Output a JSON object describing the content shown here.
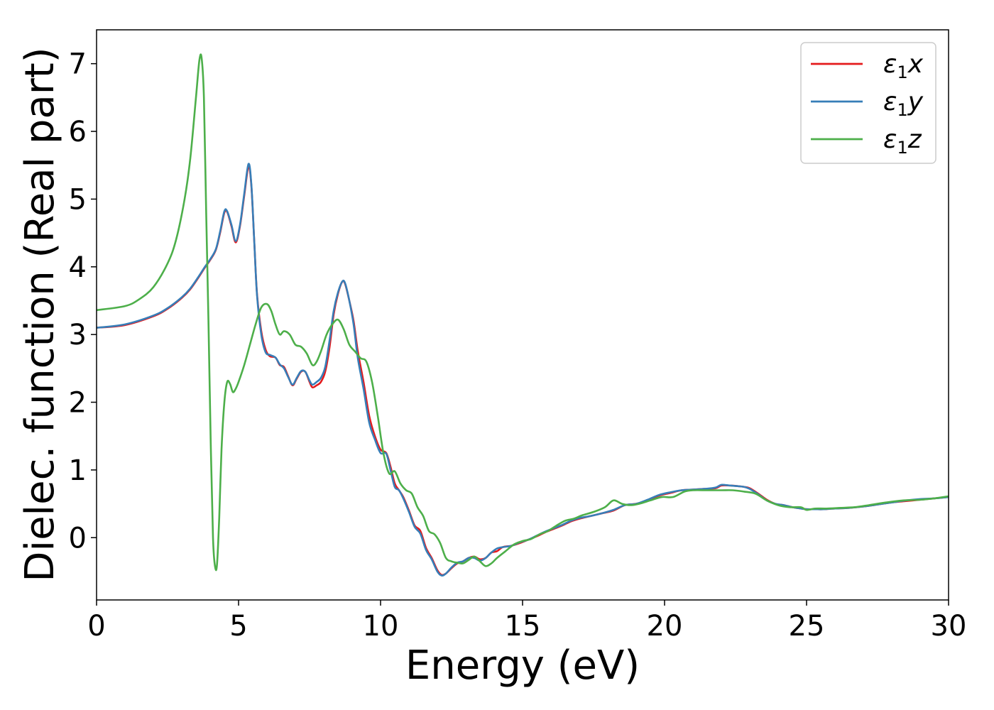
{
  "chart_data": {
    "type": "line",
    "title": "",
    "xlabel": "Energy (eV)",
    "ylabel": "Dielec. function (Real part)",
    "xlim": [
      0,
      30
    ],
    "ylim": [
      -0.92,
      7.5
    ],
    "xticks": [
      0,
      5,
      10,
      15,
      20,
      25,
      30
    ],
    "yticks": [
      0,
      1,
      2,
      3,
      4,
      5,
      6,
      7
    ],
    "grid": false,
    "legend_position": "top-right",
    "series": [
      {
        "name": "ε1x",
        "legend_main": "ε",
        "legend_sub": "1",
        "legend_suffix": "x",
        "color": "#e41a1c",
        "x": [
          0,
          1,
          2,
          2.5,
          3,
          3.3,
          3.6,
          3.8,
          4.0,
          4.2,
          4.35,
          4.5,
          4.6,
          4.75,
          4.9,
          5.05,
          5.2,
          5.35,
          5.45,
          5.55,
          5.65,
          5.8,
          5.95,
          6.1,
          6.3,
          6.45,
          6.6,
          6.75,
          6.9,
          7.05,
          7.2,
          7.35,
          7.5,
          7.6,
          7.75,
          7.9,
          8.05,
          8.2,
          8.35,
          8.5,
          8.65,
          8.75,
          8.9,
          9.05,
          9.2,
          9.4,
          9.6,
          9.8,
          10.0,
          10.2,
          10.35,
          10.5,
          10.65,
          10.8,
          11.0,
          11.2,
          11.4,
          11.6,
          11.8,
          12.0,
          12.15,
          12.3,
          12.5,
          12.7,
          12.9,
          13.1,
          13.3,
          13.5,
          13.7,
          13.9,
          14.1,
          14.3,
          14.6,
          14.9,
          15.2,
          15.5,
          15.8,
          16.1,
          16.4,
          16.7,
          17.0,
          17.4,
          17.8,
          18.2,
          18.6,
          19.0,
          19.4,
          19.8,
          20.2,
          20.6,
          21.0,
          21.4,
          21.8,
          22.0,
          22.3,
          22.6,
          22.8,
          23.0,
          23.3,
          23.6,
          23.9,
          24.2,
          24.5,
          24.8,
          25.0,
          25.3,
          25.6,
          26.0,
          26.5,
          27.0,
          27.5,
          28.0,
          28.5,
          29.0,
          29.5,
          30.0
        ],
        "y": [
          3.1,
          3.14,
          3.27,
          3.38,
          3.54,
          3.67,
          3.85,
          3.98,
          4.1,
          4.25,
          4.5,
          4.8,
          4.81,
          4.6,
          4.36,
          4.6,
          5.05,
          5.48,
          5.2,
          4.4,
          3.6,
          3.05,
          2.78,
          2.68,
          2.66,
          2.55,
          2.52,
          2.38,
          2.25,
          2.35,
          2.45,
          2.45,
          2.3,
          2.22,
          2.25,
          2.3,
          2.45,
          2.8,
          3.3,
          3.6,
          3.78,
          3.75,
          3.5,
          3.2,
          2.75,
          2.3,
          1.8,
          1.5,
          1.3,
          1.25,
          1.05,
          0.8,
          0.7,
          0.6,
          0.4,
          0.18,
          0.1,
          -0.15,
          -0.3,
          -0.48,
          -0.55,
          -0.53,
          -0.45,
          -0.38,
          -0.35,
          -0.3,
          -0.28,
          -0.32,
          -0.3,
          -0.22,
          -0.2,
          -0.14,
          -0.12,
          -0.08,
          -0.03,
          0.02,
          0.08,
          0.13,
          0.18,
          0.24,
          0.28,
          0.32,
          0.36,
          0.4,
          0.48,
          0.5,
          0.55,
          0.62,
          0.66,
          0.7,
          0.71,
          0.72,
          0.73,
          0.77,
          0.77,
          0.76,
          0.75,
          0.73,
          0.65,
          0.56,
          0.5,
          0.48,
          0.45,
          0.43,
          0.42,
          0.42,
          0.42,
          0.43,
          0.44,
          0.46,
          0.49,
          0.52,
          0.54,
          0.56,
          0.58,
          0.6
        ]
      },
      {
        "name": "ε1y",
        "legend_main": "ε",
        "legend_sub": "1",
        "legend_suffix": "y",
        "color": "#377eb8",
        "x": [
          0,
          1,
          2,
          2.5,
          3,
          3.3,
          3.6,
          3.8,
          4.0,
          4.2,
          4.35,
          4.5,
          4.6,
          4.75,
          4.9,
          5.05,
          5.2,
          5.35,
          5.45,
          5.55,
          5.65,
          5.8,
          5.95,
          6.1,
          6.3,
          6.45,
          6.6,
          6.75,
          6.9,
          7.05,
          7.2,
          7.35,
          7.5,
          7.6,
          7.75,
          7.9,
          8.05,
          8.2,
          8.35,
          8.5,
          8.65,
          8.75,
          8.9,
          9.05,
          9.2,
          9.4,
          9.6,
          9.8,
          10.0,
          10.2,
          10.35,
          10.5,
          10.65,
          10.8,
          11.0,
          11.2,
          11.4,
          11.6,
          11.8,
          12.0,
          12.15,
          12.3,
          12.5,
          12.7,
          12.9,
          13.1,
          13.3,
          13.5,
          13.7,
          13.9,
          14.1,
          14.3,
          14.6,
          14.9,
          15.2,
          15.5,
          15.8,
          16.1,
          16.4,
          16.7,
          17.0,
          17.4,
          17.8,
          18.2,
          18.6,
          19.0,
          19.4,
          19.8,
          20.2,
          20.6,
          21.0,
          21.4,
          21.8,
          22.0,
          22.3,
          22.6,
          22.8,
          23.0,
          23.3,
          23.6,
          23.9,
          24.2,
          24.5,
          24.8,
          25.0,
          25.3,
          25.6,
          26.0,
          26.5,
          27.0,
          27.5,
          28.0,
          28.5,
          29.0,
          29.5,
          30.0
        ],
        "y": [
          3.1,
          3.15,
          3.28,
          3.39,
          3.55,
          3.68,
          3.86,
          3.99,
          4.11,
          4.26,
          4.52,
          4.82,
          4.82,
          4.62,
          4.38,
          4.62,
          5.08,
          5.52,
          5.22,
          4.4,
          3.58,
          3.0,
          2.74,
          2.7,
          2.66,
          2.56,
          2.5,
          2.37,
          2.26,
          2.36,
          2.46,
          2.45,
          2.32,
          2.26,
          2.3,
          2.36,
          2.52,
          2.9,
          3.35,
          3.62,
          3.78,
          3.76,
          3.5,
          3.15,
          2.65,
          2.2,
          1.7,
          1.45,
          1.25,
          1.24,
          1.0,
          0.75,
          0.7,
          0.58,
          0.38,
          0.16,
          0.06,
          -0.18,
          -0.32,
          -0.5,
          -0.56,
          -0.53,
          -0.44,
          -0.37,
          -0.35,
          -0.3,
          -0.3,
          -0.34,
          -0.3,
          -0.22,
          -0.16,
          -0.14,
          -0.12,
          -0.07,
          -0.03,
          0.03,
          0.09,
          0.14,
          0.19,
          0.25,
          0.29,
          0.32,
          0.36,
          0.41,
          0.48,
          0.5,
          0.56,
          0.63,
          0.67,
          0.7,
          0.71,
          0.72,
          0.74,
          0.78,
          0.77,
          0.76,
          0.75,
          0.72,
          0.64,
          0.55,
          0.5,
          0.48,
          0.45,
          0.43,
          0.42,
          0.42,
          0.42,
          0.43,
          0.44,
          0.46,
          0.49,
          0.52,
          0.55,
          0.57,
          0.58,
          0.6
        ]
      },
      {
        "name": "ε1z",
        "legend_main": "ε",
        "legend_sub": "1",
        "legend_suffix": "z",
        "color": "#4daf4a",
        "x": [
          0,
          1,
          1.5,
          2,
          2.5,
          2.8,
          3.1,
          3.3,
          3.5,
          3.62,
          3.7,
          3.78,
          3.86,
          3.94,
          4.02,
          4.1,
          4.17,
          4.24,
          4.32,
          4.4,
          4.5,
          4.6,
          4.7,
          4.8,
          4.9,
          5.0,
          5.2,
          5.4,
          5.6,
          5.8,
          6.0,
          6.15,
          6.3,
          6.45,
          6.6,
          6.8,
          7.0,
          7.2,
          7.4,
          7.6,
          7.75,
          7.9,
          8.1,
          8.3,
          8.5,
          8.7,
          8.9,
          9.1,
          9.3,
          9.5,
          9.7,
          9.9,
          10.1,
          10.3,
          10.5,
          10.7,
          10.9,
          11.1,
          11.3,
          11.5,
          11.7,
          11.9,
          12.1,
          12.3,
          12.5,
          12.7,
          12.9,
          13.1,
          13.3,
          13.5,
          13.7,
          13.9,
          14.1,
          14.4,
          14.7,
          15.0,
          15.3,
          15.6,
          15.9,
          16.2,
          16.5,
          16.8,
          17.1,
          17.5,
          17.9,
          18.2,
          18.5,
          18.8,
          19.1,
          19.5,
          19.9,
          20.3,
          20.7,
          21.0,
          21.5,
          22.0,
          22.4,
          22.8,
          23.2,
          23.6,
          24.0,
          24.4,
          24.8,
          25.0,
          25.3,
          25.7,
          26.2,
          26.7,
          27.2,
          27.8,
          28.4,
          29.0,
          29.5,
          30.0
        ],
        "y": [
          3.36,
          3.42,
          3.52,
          3.7,
          4.05,
          4.4,
          5.0,
          5.6,
          6.5,
          7.05,
          7.08,
          6.5,
          4.8,
          3.2,
          1.4,
          0.0,
          -0.42,
          -0.4,
          0.3,
          1.3,
          2.0,
          2.3,
          2.27,
          2.15,
          2.2,
          2.3,
          2.55,
          2.85,
          3.15,
          3.4,
          3.45,
          3.35,
          3.15,
          3.0,
          3.05,
          3.0,
          2.85,
          2.82,
          2.72,
          2.55,
          2.6,
          2.75,
          3.0,
          3.15,
          3.22,
          3.08,
          2.85,
          2.75,
          2.65,
          2.6,
          2.3,
          1.8,
          1.25,
          0.95,
          0.98,
          0.8,
          0.7,
          0.65,
          0.45,
          0.32,
          0.1,
          0.05,
          -0.08,
          -0.3,
          -0.35,
          -0.37,
          -0.38,
          -0.33,
          -0.28,
          -0.35,
          -0.42,
          -0.38,
          -0.3,
          -0.2,
          -0.1,
          -0.05,
          -0.02,
          0.05,
          0.1,
          0.18,
          0.25,
          0.28,
          0.33,
          0.38,
          0.45,
          0.55,
          0.5,
          0.48,
          0.5,
          0.55,
          0.6,
          0.6,
          0.68,
          0.7,
          0.7,
          0.7,
          0.7,
          0.68,
          0.65,
          0.55,
          0.48,
          0.45,
          0.45,
          0.41,
          0.43,
          0.43,
          0.44,
          0.45,
          0.48,
          0.52,
          0.55,
          0.56,
          0.58,
          0.61
        ]
      }
    ]
  }
}
